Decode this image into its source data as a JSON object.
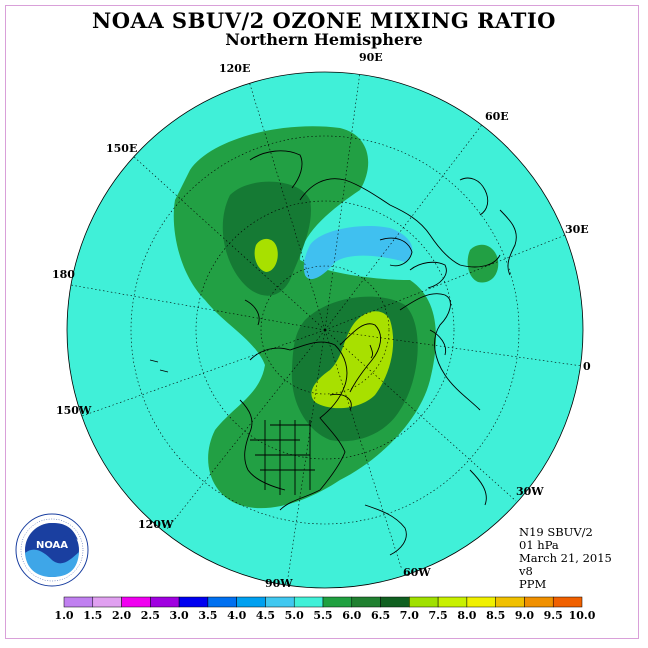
{
  "title": "NOAA SBUV/2 OZONE MIXING RATIO",
  "subtitle": "Northern Hemisphere",
  "longitude_labels": [
    {
      "text": "90E",
      "name": "lon-label-90e"
    },
    {
      "text": "60E",
      "name": "lon-label-60e"
    },
    {
      "text": "30E",
      "name": "lon-label-30e"
    },
    {
      "text": "0",
      "name": "lon-label-0"
    },
    {
      "text": "30W",
      "name": "lon-label-30w"
    },
    {
      "text": "60W",
      "name": "lon-label-60w"
    },
    {
      "text": "90W",
      "name": "lon-label-90w"
    },
    {
      "text": "120W",
      "name": "lon-label-120w"
    },
    {
      "text": "150W",
      "name": "lon-label-150w"
    },
    {
      "text": "180",
      "name": "lon-label-180"
    },
    {
      "text": "150E",
      "name": "lon-label-150e"
    },
    {
      "text": "120E",
      "name": "lon-label-120e"
    }
  ],
  "info": {
    "satellite": "N19 SBUV/2",
    "level": "01 hPa",
    "date": "March 21, 2015",
    "version": "v8",
    "units": "PPM"
  },
  "logo": {
    "text": "NOAA"
  },
  "colorbar": {
    "ticks": [
      "1.0",
      "1.5",
      "2.0",
      "2.5",
      "3.0",
      "3.5",
      "4.0",
      "4.5",
      "5.0",
      "5.5",
      "6.0",
      "6.5",
      "7.0",
      "7.5",
      "8.0",
      "8.5",
      "9.0",
      "9.5",
      "10.0"
    ],
    "colors": [
      "#c080f0",
      "#e0a0f0",
      "#f000f0",
      "#a000e0",
      "#0000f0",
      "#0070f0",
      "#00a0f0",
      "#40c8f0",
      "#40f0d8",
      "#20a040",
      "#208030",
      "#106020",
      "#a0e000",
      "#c8f000",
      "#f0f000",
      "#f0c000",
      "#f09000",
      "#f06000",
      "#f00000",
      "#e00000",
      "#805030"
    ]
  },
  "colors": {
    "cyan": "#40f0d8",
    "green_light": "#20a040",
    "green_mid": "#208040",
    "green_dark": "#106830",
    "yellow_green": "#a0e000",
    "light_blue": "#40c0f0"
  }
}
